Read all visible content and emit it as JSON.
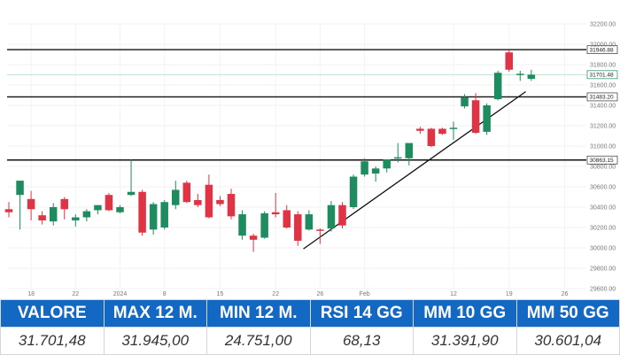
{
  "chart_data": {
    "type": "candlestick",
    "y_axis": {
      "position": "right",
      "min": 29600,
      "max": 32200,
      "ticks": [
        "32200.00",
        "32000.00",
        "31800.00",
        "31600.00",
        "31400.00",
        "31200.00",
        "31000.00",
        "30800.00",
        "30600.00",
        "30400.00",
        "30200.00",
        "30000.00",
        "29800.00",
        "29600.00"
      ]
    },
    "x_axis": {
      "tick_labels": [
        {
          "label": "18",
          "index": 2
        },
        {
          "label": "22",
          "index": 6
        },
        {
          "label": "2024",
          "index": 10
        },
        {
          "label": "8",
          "index": 14
        },
        {
          "label": "15",
          "index": 19
        },
        {
          "label": "22",
          "index": 24
        },
        {
          "label": "26",
          "index": 28
        },
        {
          "label": "Feb",
          "index": 32
        },
        {
          "label": "12",
          "index": 40
        },
        {
          "label": "19",
          "index": 45
        },
        {
          "label": "26",
          "index": 50
        }
      ]
    },
    "up_color": "#1e8c5f",
    "down_color": "#e03344",
    "candles": [
      {
        "o": 30380,
        "h": 30450,
        "l": 30300,
        "c": 30350
      },
      {
        "o": 30520,
        "h": 30650,
        "l": 30180,
        "c": 30660
      },
      {
        "o": 30480,
        "h": 30560,
        "l": 30270,
        "c": 30380
      },
      {
        "o": 30320,
        "h": 30360,
        "l": 30230,
        "c": 30270
      },
      {
        "o": 30260,
        "h": 30440,
        "l": 30220,
        "c": 30400
      },
      {
        "o": 30480,
        "h": 30500,
        "l": 30280,
        "c": 30380
      },
      {
        "o": 30270,
        "h": 30330,
        "l": 30210,
        "c": 30300
      },
      {
        "o": 30300,
        "h": 30380,
        "l": 30260,
        "c": 30360
      },
      {
        "o": 30370,
        "h": 30420,
        "l": 30330,
        "c": 30420
      },
      {
        "o": 30520,
        "h": 30540,
        "l": 30360,
        "c": 30370
      },
      {
        "o": 30350,
        "h": 30420,
        "l": 30340,
        "c": 30400
      },
      {
        "o": 30520,
        "h": 30870,
        "l": 30510,
        "c": 30550
      },
      {
        "o": 30550,
        "h": 30570,
        "l": 30120,
        "c": 30150
      },
      {
        "o": 30180,
        "h": 30450,
        "l": 30130,
        "c": 30430
      },
      {
        "o": 30200,
        "h": 30470,
        "l": 30180,
        "c": 30450
      },
      {
        "o": 30420,
        "h": 30660,
        "l": 30380,
        "c": 30570
      },
      {
        "o": 30640,
        "h": 30660,
        "l": 30440,
        "c": 30450
      },
      {
        "o": 30470,
        "h": 30530,
        "l": 30400,
        "c": 30420
      },
      {
        "o": 30620,
        "h": 30720,
        "l": 30290,
        "c": 30300
      },
      {
        "o": 30470,
        "h": 30510,
        "l": 30410,
        "c": 30430
      },
      {
        "o": 30530,
        "h": 30580,
        "l": 30280,
        "c": 30310
      },
      {
        "o": 30120,
        "h": 30370,
        "l": 30080,
        "c": 30330
      },
      {
        "o": 30120,
        "h": 30140,
        "l": 29960,
        "c": 30080
      },
      {
        "o": 30100,
        "h": 30360,
        "l": 30090,
        "c": 30340
      },
      {
        "o": 30350,
        "h": 30540,
        "l": 30300,
        "c": 30330
      },
      {
        "o": 30370,
        "h": 30420,
        "l": 30190,
        "c": 30200
      },
      {
        "o": 30330,
        "h": 30360,
        "l": 30020,
        "c": 30070
      },
      {
        "o": 30180,
        "h": 30370,
        "l": 30170,
        "c": 30330
      },
      {
        "o": 30180,
        "h": 30190,
        "l": 30040,
        "c": 30170
      },
      {
        "o": 30190,
        "h": 30460,
        "l": 30160,
        "c": 30420
      },
      {
        "o": 30420,
        "h": 30450,
        "l": 30190,
        "c": 30220
      },
      {
        "o": 30400,
        "h": 30720,
        "l": 30380,
        "c": 30700
      },
      {
        "o": 30720,
        "h": 30880,
        "l": 30700,
        "c": 30850
      },
      {
        "o": 30730,
        "h": 30800,
        "l": 30650,
        "c": 30780
      },
      {
        "o": 30780,
        "h": 30870,
        "l": 30740,
        "c": 30870
      },
      {
        "o": 30880,
        "h": 31030,
        "l": 30840,
        "c": 30890
      },
      {
        "o": 30880,
        "h": 31020,
        "l": 30810,
        "c": 31030
      },
      {
        "o": 31170,
        "h": 31190,
        "l": 31120,
        "c": 31150
      },
      {
        "o": 31170,
        "h": 31180,
        "l": 30990,
        "c": 31000
      },
      {
        "o": 31170,
        "h": 31180,
        "l": 31110,
        "c": 31120
      },
      {
        "o": 31170,
        "h": 31240,
        "l": 31060,
        "c": 31180
      },
      {
        "o": 31390,
        "h": 31510,
        "l": 31370,
        "c": 31480
      },
      {
        "o": 31450,
        "h": 31520,
        "l": 31120,
        "c": 31130
      },
      {
        "o": 31140,
        "h": 31420,
        "l": 31110,
        "c": 31400
      },
      {
        "o": 31460,
        "h": 31740,
        "l": 31450,
        "c": 31720
      },
      {
        "o": 31920,
        "h": 31946,
        "l": 31730,
        "c": 31750
      },
      {
        "o": 31700,
        "h": 31740,
        "l": 31640,
        "c": 31710
      },
      {
        "o": 31660,
        "h": 31750,
        "l": 31640,
        "c": 31701
      }
    ],
    "horizontal_levels": [
      {
        "value": 31946.88,
        "label": "31946.88"
      },
      {
        "value": 31483.2,
        "label": "31483.20"
      },
      {
        "value": 30863.15,
        "label": "30863.15"
      }
    ],
    "current_price": {
      "value": 31701.48,
      "label": "31701.48"
    },
    "trendline": {
      "from": {
        "index": 26.5,
        "value": 29990
      },
      "to": {
        "index": 46.5,
        "value": 31535
      }
    }
  },
  "stats": [
    {
      "header": "VALORE",
      "value": "31.701,48"
    },
    {
      "header": "MAX 12 M.",
      "value": "31.945,00"
    },
    {
      "header": "MIN 12 M.",
      "value": "24.751,00"
    },
    {
      "header": "RSI 14 GG",
      "value": "68,13"
    },
    {
      "header": "MM 10 GG",
      "value": "31.391,90"
    },
    {
      "header": "MM 50 GG",
      "value": "30.601,04"
    }
  ],
  "colors": {
    "header_bg": "#1268c3",
    "header_text": "#ffffff",
    "line": "#111111"
  }
}
